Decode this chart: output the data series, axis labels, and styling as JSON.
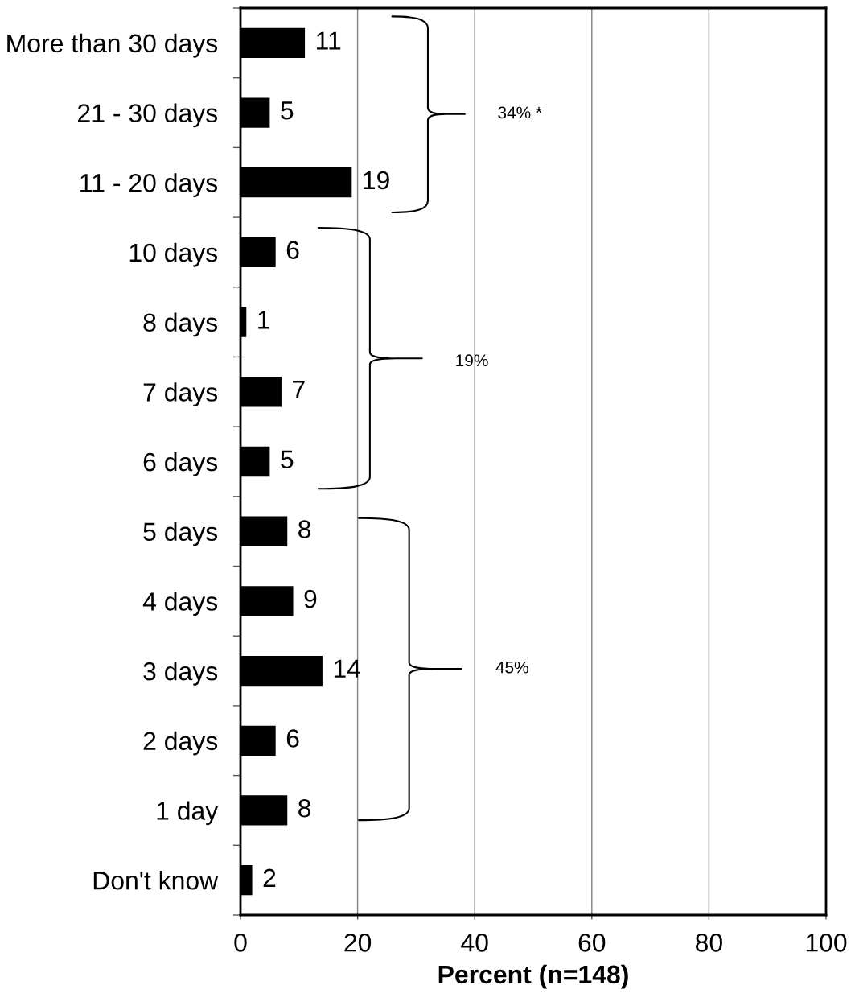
{
  "chart_data": {
    "type": "bar",
    "orientation": "horizontal",
    "categories": [
      "More than 30 days",
      "21 - 30 days",
      "11 - 20 days",
      "10 days",
      "8 days",
      "7 days",
      "6 days",
      "5 days",
      "4 days",
      "3 days",
      "2 days",
      "1 day",
      "Don't know"
    ],
    "values": [
      11,
      5,
      19,
      6,
      1,
      7,
      5,
      8,
      9,
      14,
      6,
      8,
      2
    ],
    "color": "#000000",
    "xlabel": "Percent (n=148)",
    "xlim": [
      0,
      100
    ],
    "xticks": [
      0,
      20,
      40,
      60,
      80,
      100
    ],
    "grid": "x",
    "data_labels": true,
    "annotations": [
      "34% *",
      "19%",
      "45%"
    ]
  }
}
